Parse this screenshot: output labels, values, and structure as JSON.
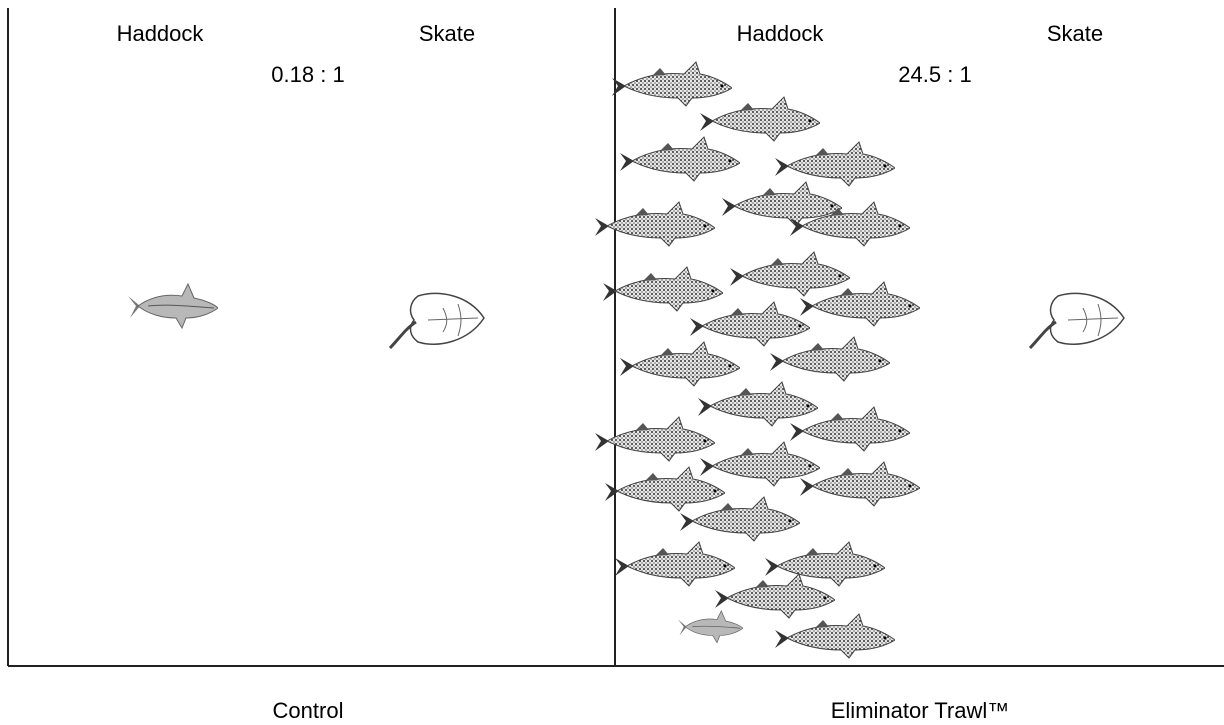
{
  "panels": [
    {
      "left_label": "Haddock",
      "right_label": "Skate",
      "ratio": "0.18 : 1",
      "caption": "Control"
    },
    {
      "left_label": "Haddock",
      "right_label": "Skate",
      "ratio": "24.5 : 1",
      "caption": "Eliminator Trawl™"
    }
  ]
}
